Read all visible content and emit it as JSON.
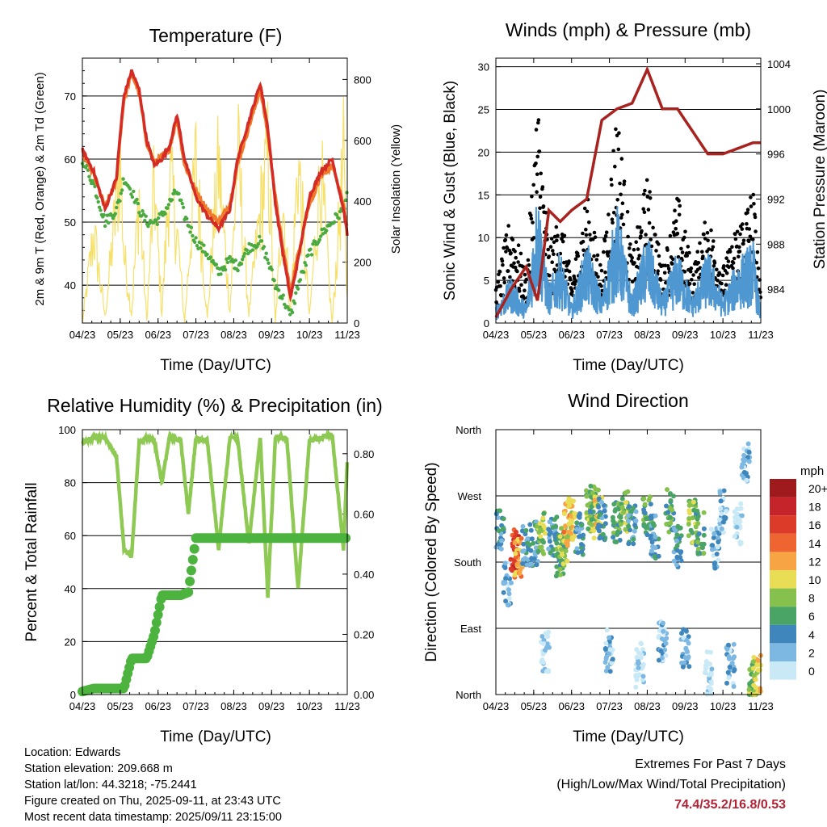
{
  "panels": {
    "temperature": {
      "title": "Temperature (F)",
      "left_label": "2m & 9m T (Red, Orange) & 2m Td (Green)",
      "right_label": "Solar Insolation (Yellow)",
      "x_label": "Time (Day/UTC)"
    },
    "winds": {
      "title": "Winds (mph) & Pressure (mb)",
      "left_label": "Sonic Wind & Gust (Blue, Black)",
      "right_label": "Station Pressure (Maroon)",
      "x_label": "Time (Day/UTC)"
    },
    "humidity": {
      "title": "Relative Humidity (%) & Precipitation (in)",
      "left_label": "Percent & Total Rainfall",
      "x_label": "Time (Day/UTC)"
    },
    "direction": {
      "title": "Wind Direction",
      "left_label": "Direction (Colored By Speed)",
      "x_label": "Time (Day/UTC)"
    }
  },
  "colorbar": {
    "title": "mph",
    "labels": [
      "20+",
      "18",
      "16",
      "14",
      "12",
      "10",
      "8",
      "6",
      "4",
      "2",
      "0"
    ],
    "colors": [
      "#9e1a1d",
      "#c4242a",
      "#dd3b2a",
      "#ef6531",
      "#f7a444",
      "#e9dd56",
      "#86c14d",
      "#4aa466",
      "#3f86bd",
      "#7db8e2",
      "#c9e9f7"
    ]
  },
  "info": {
    "location": "Location: Edwards",
    "elevation": "Station elevation: 209.668 m",
    "latlon": "Station lat/lon: 44.3218; -75.2441",
    "created": "Figure created on Thu, 2025-09-11, at 23:43 UTC",
    "recent": "Most recent data timestamp: 2025/09/11 23:15:00"
  },
  "extremes": {
    "line1": "Extremes For Past 7 Days",
    "line2": "(High/Low/Max Wind/Total Precipitation)",
    "values": "74.4/35.2/16.8/0.53"
  },
  "colors": {
    "temp_2m": "#d42b25",
    "temp_9m": "#f07a2c",
    "dewpoint": "#4aaa3f",
    "solar": "#f6e06a",
    "gust": "#000000",
    "wind": "#4e97d1",
    "pressure": "#a8231f",
    "rh": "#8dc953",
    "precip": "#4db33f"
  },
  "chart_data": [
    {
      "type": "line",
      "title": "Temperature (F)",
      "xlabel": "Time (Day/UTC)",
      "ylabel": "2m & 9m T (Red, Orange) & 2m Td (Green)",
      "y2label": "Solar Insolation (Yellow)",
      "x_ticks": [
        "04/23",
        "05/23",
        "06/23",
        "07/23",
        "08/23",
        "09/23",
        "10/23",
        "11/23"
      ],
      "ylim": [
        34,
        76
      ],
      "y_ticks": [
        40,
        50,
        60,
        70
      ],
      "y2lim": [
        0,
        870
      ],
      "y2_ticks": [
        0,
        200,
        400,
        600,
        800
      ],
      "grid": true,
      "x": [
        0,
        0.3,
        0.6,
        0.9,
        1.0,
        1.1,
        1.3,
        1.5,
        1.7,
        1.9,
        2.1,
        2.3,
        2.5,
        2.7,
        3.0,
        3.3,
        3.6,
        3.9,
        4.1,
        4.4,
        4.7,
        4.9,
        5.1,
        5.3,
        5.5,
        5.7,
        6.0,
        6.3,
        6.6,
        6.9,
        7.0
      ],
      "series": [
        {
          "name": "2m T",
          "values": [
            61.5,
            58,
            52,
            57,
            64,
            70,
            74,
            71,
            63,
            59,
            60,
            62,
            67,
            60,
            54,
            51,
            49,
            52,
            60,
            66,
            72,
            65,
            53,
            45,
            38,
            44,
            54,
            58,
            60,
            52,
            48
          ]
        },
        {
          "name": "9m T",
          "values": [
            61,
            57.5,
            52.5,
            56.5,
            63.5,
            69.5,
            73.5,
            70.5,
            62.5,
            59.5,
            60.5,
            61.5,
            66.5,
            59,
            55,
            52,
            50,
            53,
            59,
            65,
            71,
            64,
            54,
            46,
            39,
            45,
            53,
            57,
            59,
            53,
            49
          ]
        },
        {
          "name": "2m Td",
          "values": [
            60,
            56,
            50,
            52,
            54,
            57,
            55,
            52,
            50,
            50,
            51,
            53,
            55,
            51,
            47,
            45,
            42,
            44,
            43,
            46,
            47,
            44,
            40,
            38,
            35,
            40,
            45,
            48,
            50,
            52,
            55
          ]
        },
        {
          "name": "Solar Insolation",
          "axis": "y2",
          "values": [
            0,
            420,
            30,
            560,
            760,
            320,
            40,
            600,
            10,
            650,
            40,
            680,
            430,
            0,
            750,
            20,
            740,
            50,
            800,
            40,
            520,
            780,
            0,
            580,
            50,
            760,
            30,
            700,
            0,
            750,
            100
          ]
        }
      ]
    },
    {
      "type": "line",
      "title": "Winds (mph) & Pressure (mb)",
      "xlabel": "Time (Day/UTC)",
      "ylabel": "Sonic Wind & Gust (Blue, Black)",
      "y2label": "Station Pressure (Maroon)",
      "x_ticks": [
        "04/23",
        "05/23",
        "06/23",
        "07/23",
        "08/23",
        "09/23",
        "10/23",
        "11/23"
      ],
      "ylim": [
        0,
        31
      ],
      "y_ticks": [
        0,
        5,
        10,
        15,
        20,
        25,
        30
      ],
      "y2lim": [
        981,
        1004.5
      ],
      "y2_ticks": [
        984,
        988,
        992,
        996,
        1000,
        1004
      ],
      "grid": true,
      "x": [
        0,
        0.4,
        0.8,
        1.1,
        1.4,
        1.7,
        2.0,
        2.4,
        2.8,
        3.2,
        3.6,
        4.0,
        4.4,
        4.8,
        5.2,
        5.6,
        6.0,
        6.4,
        6.8,
        7.0
      ],
      "series": [
        {
          "name": "Gust",
          "values": [
            4,
            12,
            5,
            25,
            8,
            12,
            5,
            14,
            6,
            24,
            7,
            16,
            6,
            14,
            6,
            12,
            6,
            11,
            15,
            3
          ]
        },
        {
          "name": "Wind",
          "values": [
            2,
            5,
            2,
            15,
            4,
            8,
            2,
            9,
            3,
            13,
            3,
            10,
            3,
            8,
            3,
            8,
            3,
            7,
            9,
            1
          ]
        },
        {
          "name": "Pressure",
          "values": [
            981.5,
            984,
            986,
            983,
            991,
            990,
            991,
            992,
            999,
            1000,
            1000.5,
            1003.5,
            1000,
            1000,
            998,
            996,
            996,
            996.5,
            997,
            997
          ]
        }
      ]
    },
    {
      "type": "line",
      "title": "Relative Humidity (%) & Precipitation (in)",
      "xlabel": "Time (Day/UTC)",
      "ylabel": "Percent & Total Rainfall",
      "x_ticks": [
        "04/23",
        "05/23",
        "06/23",
        "07/23",
        "08/23",
        "09/23",
        "10/23",
        "11/23"
      ],
      "ylim": [
        0,
        100
      ],
      "y_ticks": [
        0,
        20,
        40,
        60,
        80,
        100
      ],
      "y2lim": [
        0,
        0.88
      ],
      "y2_ticks": [
        0.0,
        0.2,
        0.4,
        0.6,
        0.8
      ],
      "grid": true,
      "x": [
        0,
        0.3,
        0.6,
        0.9,
        1.1,
        1.3,
        1.5,
        1.7,
        1.9,
        2.1,
        2.3,
        2.6,
        2.8,
        3.0,
        3.3,
        3.6,
        3.9,
        4.1,
        4.4,
        4.7,
        4.9,
        5.1,
        5.4,
        5.7,
        6.0,
        6.3,
        6.6,
        6.9,
        7.0
      ],
      "series": [
        {
          "name": "Relative Humidity",
          "values": [
            95,
            97,
            97,
            90,
            55,
            52,
            95,
            97,
            96,
            80,
            97,
            96,
            68,
            97,
            96,
            55,
            97,
            97,
            57,
            97,
            37,
            97,
            97,
            40,
            96,
            97,
            98,
            55,
            88
          ]
        },
        {
          "name": "Total Precipitation",
          "axis": "y2",
          "values": [
            0.01,
            0.02,
            0.02,
            0.02,
            0.02,
            0.12,
            0.12,
            0.12,
            0.2,
            0.33,
            0.33,
            0.33,
            0.34,
            0.52,
            0.52,
            0.52,
            0.52,
            0.52,
            0.52,
            0.52,
            0.52,
            0.52,
            0.52,
            0.52,
            0.52,
            0.52,
            0.52,
            0.52,
            0.52
          ]
        }
      ]
    },
    {
      "type": "scatter",
      "title": "Wind Direction",
      "xlabel": "Time (Day/UTC)",
      "ylabel": "Direction (Colored By Speed)",
      "x_ticks": [
        "04/23",
        "05/23",
        "06/23",
        "07/23",
        "08/23",
        "09/23",
        "10/23",
        "11/23"
      ],
      "y_ticks": [
        "North",
        "East",
        "South",
        "West",
        "North"
      ],
      "ylim": [
        0,
        360
      ],
      "color_scale": "mph",
      "points": [
        {
          "x": 0.1,
          "dir": 220,
          "speed": 4
        },
        {
          "x": 0.3,
          "dir": 150,
          "speed": 2
        },
        {
          "x": 0.5,
          "dir": 195,
          "speed": 16
        },
        {
          "x": 0.6,
          "dir": 185,
          "speed": 12
        },
        {
          "x": 0.8,
          "dir": 200,
          "speed": 4
        },
        {
          "x": 1.0,
          "dir": 205,
          "speed": 4
        },
        {
          "x": 1.2,
          "dir": 220,
          "speed": 8
        },
        {
          "x": 1.3,
          "dir": 60,
          "speed": 0
        },
        {
          "x": 1.5,
          "dir": 215,
          "speed": 4
        },
        {
          "x": 1.7,
          "dir": 190,
          "speed": 6
        },
        {
          "x": 1.8,
          "dir": 200,
          "speed": 8
        },
        {
          "x": 1.9,
          "dir": 230,
          "speed": 12
        },
        {
          "x": 2.0,
          "dir": 240,
          "speed": 10
        },
        {
          "x": 2.2,
          "dir": 220,
          "speed": 4
        },
        {
          "x": 2.5,
          "dir": 250,
          "speed": 8
        },
        {
          "x": 2.6,
          "dir": 255,
          "speed": 6
        },
        {
          "x": 2.7,
          "dir": 240,
          "speed": 10
        },
        {
          "x": 2.8,
          "dir": 240,
          "speed": 4
        },
        {
          "x": 3.0,
          "dir": 60,
          "speed": 2
        },
        {
          "x": 3.2,
          "dir": 235,
          "speed": 6
        },
        {
          "x": 3.4,
          "dir": 250,
          "speed": 8
        },
        {
          "x": 3.6,
          "dir": 230,
          "speed": 4
        },
        {
          "x": 3.8,
          "dir": 40,
          "speed": 0
        },
        {
          "x": 4.0,
          "dir": 240,
          "speed": 6
        },
        {
          "x": 4.2,
          "dir": 215,
          "speed": 4
        },
        {
          "x": 4.4,
          "dir": 70,
          "speed": 2
        },
        {
          "x": 4.6,
          "dir": 250,
          "speed": 6
        },
        {
          "x": 4.8,
          "dir": 200,
          "speed": 4
        },
        {
          "x": 5.0,
          "dir": 60,
          "speed": 2
        },
        {
          "x": 5.2,
          "dir": 235,
          "speed": 8
        },
        {
          "x": 5.4,
          "dir": 220,
          "speed": 6
        },
        {
          "x": 5.6,
          "dir": 30,
          "speed": 0
        },
        {
          "x": 5.8,
          "dir": 200,
          "speed": 2
        },
        {
          "x": 6.0,
          "dir": 250,
          "speed": 2
        },
        {
          "x": 6.2,
          "dir": 40,
          "speed": 2
        },
        {
          "x": 6.4,
          "dir": 230,
          "speed": 0
        },
        {
          "x": 6.6,
          "dir": 320,
          "speed": 2
        },
        {
          "x": 6.8,
          "dir": 20,
          "speed": 8
        },
        {
          "x": 6.9,
          "dir": 25,
          "speed": 10
        }
      ]
    }
  ]
}
